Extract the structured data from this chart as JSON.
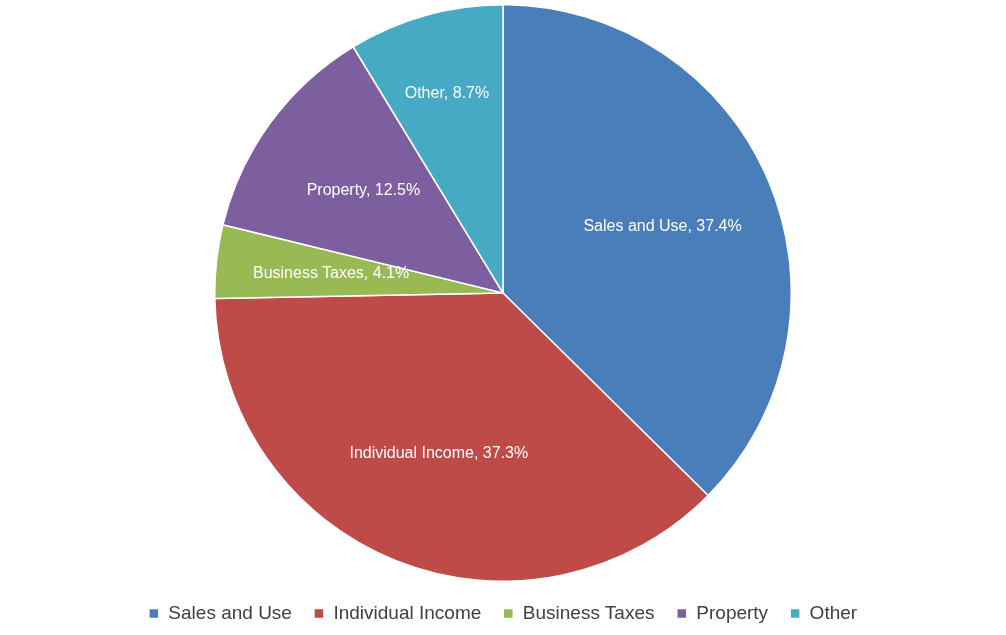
{
  "chart_data": {
    "type": "pie",
    "categories": [
      "Sales and Use",
      "Individual Income",
      "Business Taxes",
      "Property",
      "Other"
    ],
    "values": [
      37.4,
      37.3,
      4.1,
      12.5,
      8.7
    ],
    "colors": [
      "#4a7ebb",
      "#be4b48",
      "#98b954",
      "#7d5fa0",
      "#46aac5"
    ],
    "value_labels": [
      "Sales and Use, 37.4%",
      "Individual Income, 37.3%",
      "Business Taxes, 4.1%",
      "Property, 12.5%",
      "Other, 8.7%"
    ],
    "legend": "bottom"
  }
}
